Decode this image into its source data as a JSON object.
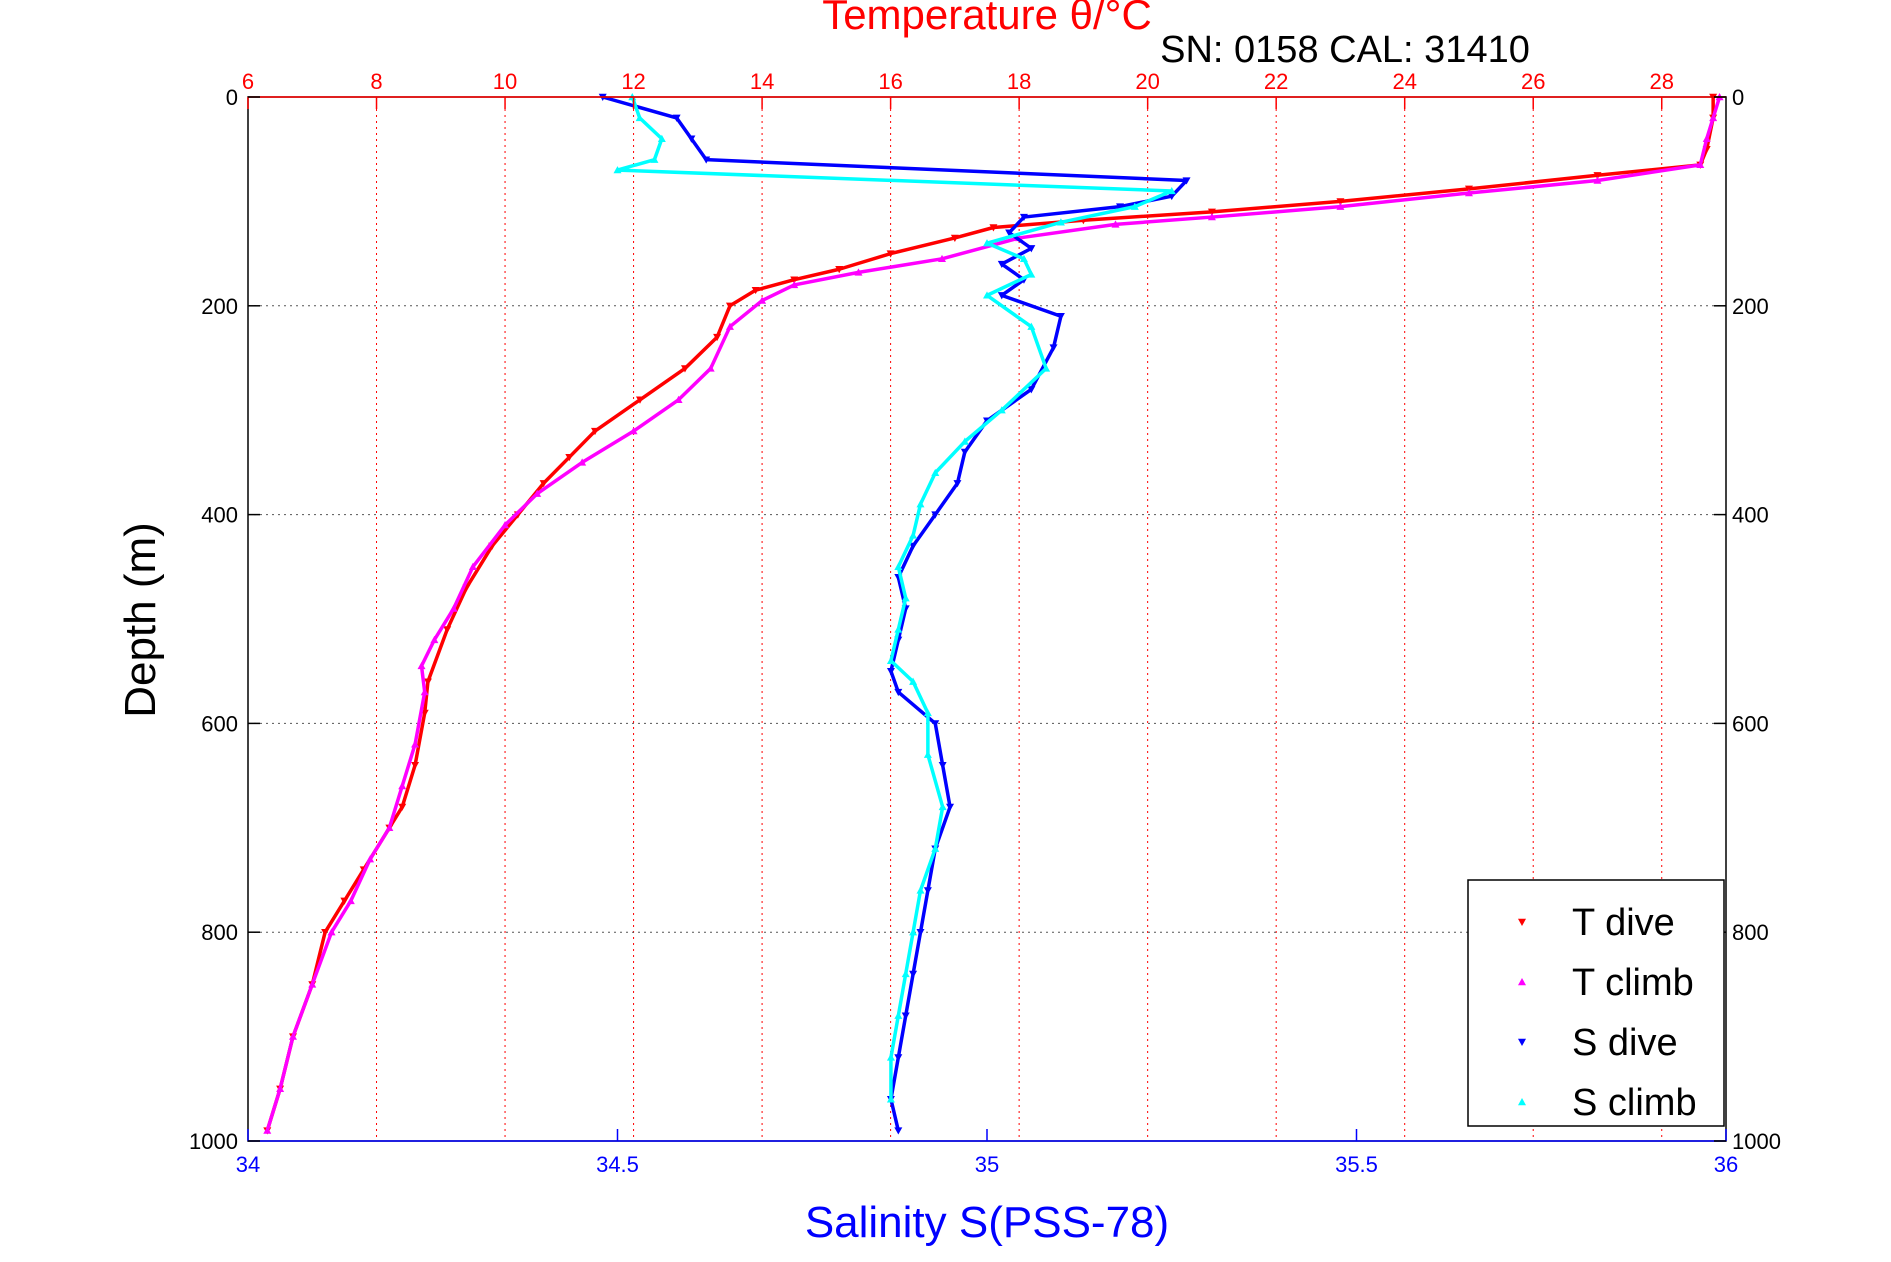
{
  "chart_data": {
    "type": "scatter",
    "top_axis": {
      "title": "Temperature θ/°C",
      "range": [
        6,
        29
      ],
      "ticks": [
        "6",
        "8",
        "10",
        "12",
        "14",
        "16",
        "18",
        "20",
        "22",
        "24",
        "26",
        "28"
      ],
      "tick_values": [
        6,
        8,
        10,
        12,
        14,
        16,
        18,
        20,
        22,
        24,
        26,
        28
      ],
      "color": "#ff0000",
      "grid": true
    },
    "bottom_axis": {
      "title": "Salinity S(PSS-78)",
      "range": [
        34,
        36
      ],
      "ticks": [
        "34",
        "34.5",
        "35",
        "35.5",
        "36"
      ],
      "tick_values": [
        34,
        34.5,
        35,
        35.5,
        36
      ],
      "color": "#0000ff"
    },
    "y_axis": {
      "title": "Depth (m)",
      "range": [
        0,
        1000
      ],
      "ticks": [
        "0",
        "200",
        "400",
        "600",
        "800",
        "1000"
      ],
      "tick_values": [
        0,
        200,
        400,
        600,
        800,
        1000
      ],
      "reversed": true,
      "grid": true
    },
    "annotation": "SN: 0158  CAL: 31410",
    "legend": {
      "position": "bottom-right"
    },
    "series": [
      {
        "name": "T dive",
        "axis": "temperature",
        "color": "#ff0000",
        "marker": "triangle-down",
        "points": [
          [
            28.8,
            0
          ],
          [
            28.8,
            20
          ],
          [
            28.7,
            50
          ],
          [
            28.6,
            65
          ],
          [
            27,
            75
          ],
          [
            25,
            88
          ],
          [
            23,
            100
          ],
          [
            21,
            110
          ],
          [
            19,
            118
          ],
          [
            17.6,
            125
          ],
          [
            17,
            135
          ],
          [
            16,
            150
          ],
          [
            15.2,
            165
          ],
          [
            14.5,
            175
          ],
          [
            13.9,
            185
          ],
          [
            13.5,
            200
          ],
          [
            13.3,
            230
          ],
          [
            12.8,
            260
          ],
          [
            12.1,
            290
          ],
          [
            11.4,
            320
          ],
          [
            11,
            345
          ],
          [
            10.6,
            370
          ],
          [
            10.2,
            400
          ],
          [
            9.8,
            430
          ],
          [
            9.4,
            470
          ],
          [
            9.1,
            510
          ],
          [
            8.8,
            560
          ],
          [
            8.75,
            590
          ],
          [
            8.6,
            640
          ],
          [
            8.4,
            680
          ],
          [
            8.2,
            700
          ],
          [
            7.8,
            740
          ],
          [
            7.5,
            770
          ],
          [
            7.2,
            800
          ],
          [
            7,
            850
          ],
          [
            6.7,
            900
          ],
          [
            6.5,
            950
          ],
          [
            6.3,
            990
          ]
        ]
      },
      {
        "name": "T climb",
        "axis": "temperature",
        "color": "#ff00ff",
        "marker": "triangle-up",
        "points": [
          [
            28.9,
            0
          ],
          [
            28.8,
            20
          ],
          [
            28.7,
            40
          ],
          [
            28.6,
            65
          ],
          [
            27,
            80
          ],
          [
            25,
            92
          ],
          [
            23,
            105
          ],
          [
            21,
            115
          ],
          [
            19.5,
            122
          ],
          [
            18,
            135
          ],
          [
            16.8,
            155
          ],
          [
            15.5,
            168
          ],
          [
            14.5,
            180
          ],
          [
            14,
            195
          ],
          [
            13.5,
            220
          ],
          [
            13.2,
            260
          ],
          [
            12.7,
            290
          ],
          [
            12,
            320
          ],
          [
            11.2,
            350
          ],
          [
            10.5,
            380
          ],
          [
            10,
            410
          ],
          [
            9.5,
            450
          ],
          [
            9.2,
            490
          ],
          [
            8.9,
            520
          ],
          [
            8.7,
            545
          ],
          [
            8.75,
            570
          ],
          [
            8.6,
            620
          ],
          [
            8.4,
            660
          ],
          [
            8.2,
            700
          ],
          [
            7.9,
            730
          ],
          [
            7.6,
            770
          ],
          [
            7.3,
            800
          ],
          [
            7,
            850
          ],
          [
            6.7,
            900
          ],
          [
            6.5,
            950
          ],
          [
            6.3,
            990
          ]
        ]
      },
      {
        "name": "S dive",
        "axis": "salinity",
        "color": "#0000ff",
        "marker": "triangle-down",
        "points": [
          [
            34.48,
            0
          ],
          [
            34.58,
            20
          ],
          [
            34.6,
            40
          ],
          [
            34.62,
            60
          ],
          [
            35.27,
            80
          ],
          [
            35.25,
            95
          ],
          [
            35.18,
            105
          ],
          [
            35.05,
            115
          ],
          [
            35.03,
            130
          ],
          [
            35.06,
            145
          ],
          [
            35.02,
            160
          ],
          [
            35.05,
            175
          ],
          [
            35.02,
            190
          ],
          [
            35.1,
            210
          ],
          [
            35.09,
            240
          ],
          [
            35.06,
            280
          ],
          [
            35,
            310
          ],
          [
            34.97,
            340
          ],
          [
            34.96,
            370
          ],
          [
            34.93,
            400
          ],
          [
            34.9,
            430
          ],
          [
            34.88,
            460
          ],
          [
            34.89,
            490
          ],
          [
            34.88,
            520
          ],
          [
            34.87,
            550
          ],
          [
            34.88,
            570
          ],
          [
            34.93,
            600
          ],
          [
            34.94,
            640
          ],
          [
            34.95,
            680
          ],
          [
            34.93,
            720
          ],
          [
            34.92,
            760
          ],
          [
            34.91,
            800
          ],
          [
            34.9,
            840
          ],
          [
            34.89,
            880
          ],
          [
            34.88,
            920
          ],
          [
            34.87,
            960
          ],
          [
            34.88,
            990
          ]
        ]
      },
      {
        "name": "S climb",
        "axis": "salinity",
        "color": "#00ffff",
        "marker": "triangle-up",
        "points": [
          [
            34.52,
            0
          ],
          [
            34.53,
            20
          ],
          [
            34.56,
            40
          ],
          [
            34.55,
            60
          ],
          [
            34.5,
            70
          ],
          [
            35.25,
            90
          ],
          [
            35.2,
            105
          ],
          [
            35.1,
            120
          ],
          [
            35,
            140
          ],
          [
            35.05,
            155
          ],
          [
            35.06,
            170
          ],
          [
            35,
            190
          ],
          [
            35.06,
            220
          ],
          [
            35.08,
            260
          ],
          [
            35.02,
            300
          ],
          [
            34.97,
            330
          ],
          [
            34.93,
            360
          ],
          [
            34.91,
            390
          ],
          [
            34.9,
            420
          ],
          [
            34.88,
            450
          ],
          [
            34.89,
            480
          ],
          [
            34.88,
            510
          ],
          [
            34.87,
            540
          ],
          [
            34.9,
            560
          ],
          [
            34.92,
            590
          ],
          [
            34.92,
            630
          ],
          [
            34.94,
            680
          ],
          [
            34.93,
            720
          ],
          [
            34.91,
            760
          ],
          [
            34.9,
            800
          ],
          [
            34.89,
            840
          ],
          [
            34.88,
            880
          ],
          [
            34.87,
            920
          ],
          [
            34.87,
            960
          ]
        ]
      }
    ]
  }
}
